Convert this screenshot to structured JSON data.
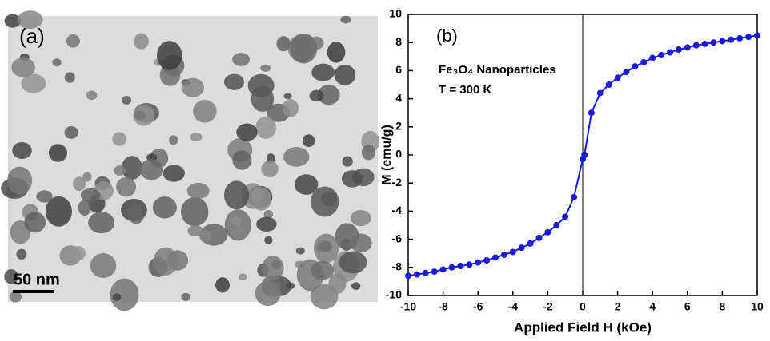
{
  "image_panel": {
    "label": "(a)",
    "scale_bar": "50 nm"
  },
  "chart_data": {
    "type": "line",
    "x_label": "Applied Field H (kOe)",
    "y_label": "M (emu/g)",
    "annotations": [
      "(b)",
      "Fe₃O₄ Nanoparticles",
      "T = 300 K"
    ],
    "x": [
      -10,
      -9.5,
      -9,
      -8.5,
      -8,
      -7.5,
      -7,
      -6.5,
      -6,
      -5.5,
      -5,
      -4.5,
      -4,
      -3.5,
      -3,
      -2.5,
      -2,
      -1.5,
      -1,
      -0.5,
      0,
      0.1,
      0.5,
      1,
      1.5,
      2,
      2.5,
      3,
      3.5,
      4,
      4.5,
      5,
      5.5,
      6,
      6.5,
      7,
      7.5,
      8,
      8.5,
      9,
      9.5,
      10
    ],
    "values": [
      -8.6,
      -8.5,
      -8.4,
      -8.3,
      -8.15,
      -8.0,
      -7.9,
      -7.8,
      -7.65,
      -7.5,
      -7.3,
      -7.1,
      -6.9,
      -6.6,
      -6.3,
      -5.9,
      -5.5,
      -5.0,
      -4.4,
      -3.0,
      -0.3,
      0.0,
      3.0,
      4.4,
      5.0,
      5.5,
      5.9,
      6.3,
      6.6,
      6.9,
      7.1,
      7.3,
      7.5,
      7.65,
      7.8,
      7.9,
      8.0,
      8.1,
      8.2,
      8.3,
      8.4,
      8.5
    ],
    "color": "#1a1adc",
    "xlim": [
      -10,
      10
    ],
    "ylim": [
      -10,
      10
    ],
    "xticks": [
      -10,
      -8,
      -6,
      -4,
      -2,
      0,
      2,
      4,
      6,
      8,
      10
    ],
    "yticks": [
      -10,
      -8,
      -6,
      -4,
      -2,
      0,
      2,
      4,
      6,
      8,
      10
    ],
    "reference_line_x": 0
  }
}
